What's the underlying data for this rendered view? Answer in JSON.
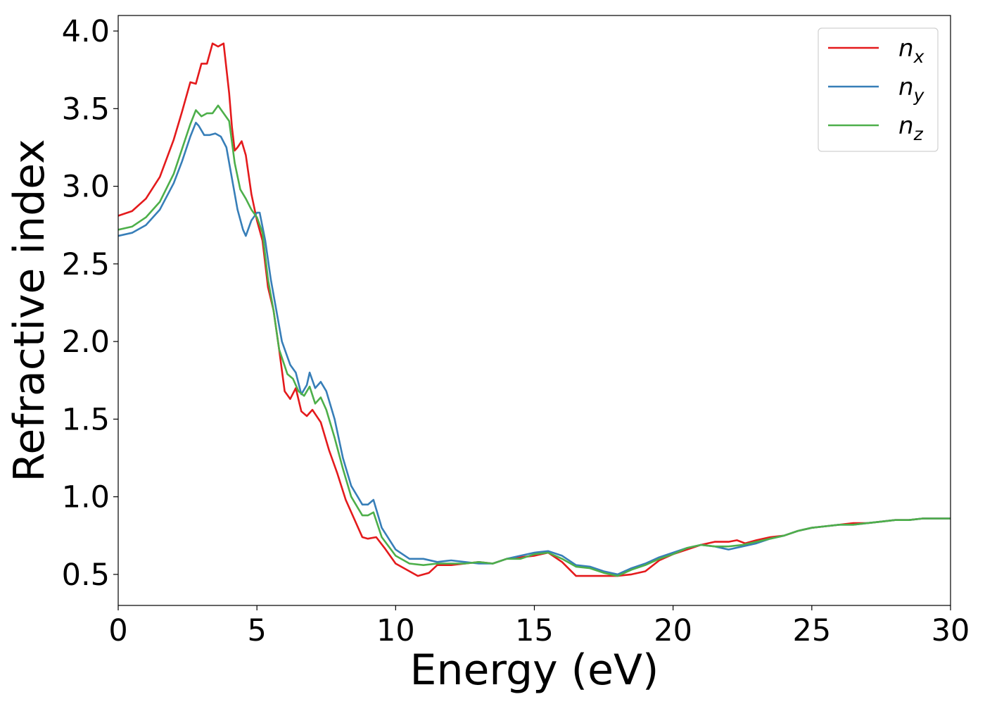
{
  "chart_data": {
    "type": "line",
    "xlabel": "Energy (eV)",
    "ylabel": "Refractive index",
    "xlim": [
      0,
      30
    ],
    "ylim": [
      0.3,
      4.1
    ],
    "xticks": [
      0,
      5,
      10,
      15,
      20,
      25,
      30
    ],
    "yticks": [
      0.5,
      1.0,
      1.5,
      2.0,
      2.5,
      3.0,
      3.5,
      4.0
    ],
    "xtick_labels": [
      "0",
      "5",
      "10",
      "15",
      "20",
      "25",
      "30"
    ],
    "ytick_labels": [
      "0.5",
      "1.0",
      "1.5",
      "2.0",
      "2.5",
      "3.0",
      "3.5",
      "4.0"
    ],
    "grid": false,
    "legend_position": "top-right",
    "series": [
      {
        "name": "n",
        "subscript": "x",
        "color": "#e41a1c",
        "x": [
          0,
          0.5,
          1.0,
          1.5,
          2.0,
          2.3,
          2.6,
          2.8,
          3.0,
          3.2,
          3.4,
          3.6,
          3.8,
          4.0,
          4.1,
          4.2,
          4.3,
          4.45,
          4.6,
          4.8,
          5.0,
          5.2,
          5.4,
          5.6,
          5.8,
          6.0,
          6.2,
          6.4,
          6.6,
          6.8,
          7.0,
          7.3,
          7.6,
          7.9,
          8.2,
          8.5,
          8.8,
          9.0,
          9.3,
          9.6,
          10.0,
          10.5,
          10.8,
          11.2,
          11.5,
          12.0,
          12.5,
          13.0,
          13.5,
          14.0,
          14.5,
          15.0,
          15.5,
          16.0,
          16.5,
          17.0,
          17.5,
          18.0,
          18.5,
          19.0,
          19.5,
          20.0,
          20.5,
          21.0,
          21.5,
          22.0,
          22.3,
          22.6,
          23.0,
          23.5,
          24.0,
          24.5,
          25.0,
          25.5,
          26.0,
          26.5,
          27.0,
          27.5,
          28.0,
          28.5,
          29.0,
          29.5,
          30.0
        ],
        "y": [
          2.81,
          2.84,
          2.92,
          3.06,
          3.3,
          3.48,
          3.67,
          3.66,
          3.79,
          3.79,
          3.92,
          3.9,
          3.92,
          3.6,
          3.38,
          3.23,
          3.25,
          3.29,
          3.2,
          2.95,
          2.78,
          2.65,
          2.35,
          2.2,
          1.95,
          1.68,
          1.63,
          1.7,
          1.55,
          1.52,
          1.56,
          1.48,
          1.3,
          1.15,
          0.98,
          0.86,
          0.74,
          0.73,
          0.74,
          0.67,
          0.57,
          0.52,
          0.49,
          0.51,
          0.56,
          0.56,
          0.57,
          0.58,
          0.57,
          0.6,
          0.61,
          0.62,
          0.64,
          0.58,
          0.49,
          0.49,
          0.49,
          0.49,
          0.5,
          0.52,
          0.59,
          0.63,
          0.66,
          0.69,
          0.71,
          0.71,
          0.72,
          0.7,
          0.72,
          0.74,
          0.75,
          0.78,
          0.8,
          0.81,
          0.82,
          0.83,
          0.83,
          0.84,
          0.85,
          0.85,
          0.86,
          0.86,
          0.86
        ]
      },
      {
        "name": "n",
        "subscript": "y",
        "color": "#377eb8",
        "x": [
          0,
          0.5,
          1.0,
          1.5,
          2.0,
          2.3,
          2.6,
          2.8,
          2.9,
          3.1,
          3.3,
          3.5,
          3.7,
          3.9,
          4.1,
          4.3,
          4.5,
          4.6,
          4.8,
          5.0,
          5.1,
          5.3,
          5.5,
          5.7,
          5.9,
          6.2,
          6.4,
          6.6,
          6.8,
          6.9,
          7.1,
          7.3,
          7.5,
          7.8,
          8.1,
          8.4,
          8.8,
          9.0,
          9.2,
          9.5,
          10.0,
          10.5,
          11.0,
          11.5,
          12.0,
          12.5,
          13.0,
          13.5,
          14.0,
          14.5,
          15.0,
          15.5,
          16.0,
          16.5,
          17.0,
          17.5,
          18.0,
          18.5,
          19.0,
          19.5,
          20.0,
          20.5,
          21.0,
          21.5,
          22.0,
          22.5,
          23.0,
          23.5,
          24.0,
          24.5,
          25.0,
          25.5,
          26.0,
          26.5,
          27.0,
          27.5,
          28.0,
          28.5,
          29.0,
          29.5,
          30.0
        ],
        "y": [
          2.68,
          2.7,
          2.75,
          2.85,
          3.02,
          3.16,
          3.32,
          3.41,
          3.39,
          3.33,
          3.33,
          3.34,
          3.32,
          3.25,
          3.05,
          2.85,
          2.72,
          2.68,
          2.78,
          2.83,
          2.83,
          2.65,
          2.4,
          2.2,
          2.0,
          1.85,
          1.8,
          1.66,
          1.72,
          1.8,
          1.7,
          1.74,
          1.68,
          1.5,
          1.25,
          1.07,
          0.95,
          0.95,
          0.98,
          0.8,
          0.66,
          0.6,
          0.6,
          0.58,
          0.59,
          0.58,
          0.57,
          0.57,
          0.6,
          0.62,
          0.64,
          0.65,
          0.62,
          0.56,
          0.55,
          0.52,
          0.5,
          0.54,
          0.57,
          0.61,
          0.64,
          0.67,
          0.69,
          0.68,
          0.66,
          0.68,
          0.7,
          0.73,
          0.75,
          0.78,
          0.8,
          0.81,
          0.82,
          0.82,
          0.83,
          0.84,
          0.85,
          0.85,
          0.86,
          0.86,
          0.86
        ]
      },
      {
        "name": "n",
        "subscript": "z",
        "color": "#4daf4a",
        "x": [
          0,
          0.5,
          1.0,
          1.5,
          2.0,
          2.3,
          2.6,
          2.8,
          3.0,
          3.2,
          3.4,
          3.6,
          3.8,
          4.0,
          4.2,
          4.4,
          4.6,
          4.8,
          5.0,
          5.2,
          5.4,
          5.6,
          5.8,
          6.1,
          6.3,
          6.5,
          6.7,
          6.9,
          7.1,
          7.3,
          7.5,
          7.8,
          8.1,
          8.4,
          8.8,
          9.0,
          9.2,
          9.5,
          10.0,
          10.5,
          11.0,
          11.5,
          12.0,
          12.5,
          13.0,
          13.5,
          14.0,
          14.5,
          15.0,
          15.5,
          16.0,
          16.5,
          17.0,
          17.5,
          18.0,
          18.5,
          19.0,
          19.5,
          20.0,
          20.5,
          21.0,
          21.5,
          22.0,
          22.5,
          23.0,
          23.5,
          24.0,
          24.5,
          25.0,
          25.5,
          26.0,
          26.5,
          27.0,
          27.5,
          28.0,
          28.5,
          29.0,
          29.5,
          30.0
        ],
        "y": [
          2.72,
          2.74,
          2.8,
          2.9,
          3.08,
          3.24,
          3.4,
          3.49,
          3.45,
          3.47,
          3.47,
          3.52,
          3.47,
          3.42,
          3.15,
          2.98,
          2.92,
          2.85,
          2.8,
          2.7,
          2.4,
          2.2,
          1.95,
          1.79,
          1.76,
          1.68,
          1.65,
          1.71,
          1.6,
          1.64,
          1.56,
          1.38,
          1.18,
          1.0,
          0.88,
          0.88,
          0.9,
          0.74,
          0.62,
          0.57,
          0.56,
          0.57,
          0.57,
          0.57,
          0.58,
          0.57,
          0.6,
          0.6,
          0.63,
          0.64,
          0.6,
          0.55,
          0.54,
          0.51,
          0.49,
          0.53,
          0.56,
          0.6,
          0.63,
          0.67,
          0.69,
          0.68,
          0.68,
          0.69,
          0.71,
          0.73,
          0.75,
          0.78,
          0.8,
          0.81,
          0.82,
          0.82,
          0.83,
          0.84,
          0.85,
          0.85,
          0.86,
          0.86,
          0.86
        ]
      }
    ]
  }
}
